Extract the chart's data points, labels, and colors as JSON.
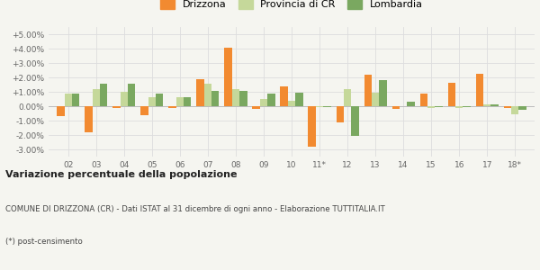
{
  "years": [
    "02",
    "03",
    "04",
    "05",
    "06",
    "07",
    "08",
    "09",
    "10",
    "11*",
    "12",
    "13",
    "14",
    "15",
    "16",
    "17",
    "18*"
  ],
  "drizzona": [
    -0.7,
    -1.8,
    -0.1,
    -0.6,
    -0.1,
    1.9,
    4.05,
    -0.2,
    1.4,
    -2.8,
    -1.15,
    2.2,
    -0.2,
    0.9,
    1.6,
    2.25,
    -0.1
  ],
  "provincia_cr": [
    0.85,
    1.2,
    1.0,
    0.65,
    0.65,
    1.55,
    1.2,
    0.5,
    0.4,
    -0.05,
    1.2,
    0.95,
    0.0,
    -0.1,
    -0.1,
    0.15,
    -0.55
  ],
  "lombardia": [
    0.85,
    1.55,
    1.55,
    0.9,
    0.65,
    1.05,
    1.05,
    0.85,
    0.95,
    -0.05,
    -2.05,
    1.8,
    0.3,
    -0.05,
    -0.05,
    0.15,
    -0.25
  ],
  "color_drizzona": "#f28a30",
  "color_provincia": "#c5d89a",
  "color_lombardia": "#7aa860",
  "bg_color": "#f5f5f0",
  "grid_color": "#dddddd",
  "ylim": [
    -3.5,
    5.5
  ],
  "yticks": [
    -3.0,
    -2.0,
    -1.0,
    0.0,
    1.0,
    2.0,
    3.0,
    4.0,
    5.0
  ],
  "ytick_labels": [
    "-3.00%",
    "-2.00%",
    "-1.00%",
    "0.00%",
    "+1.00%",
    "+2.00%",
    "+3.00%",
    "+4.00%",
    "+5.00%"
  ],
  "title_bold": "Variazione percentuale della popolazione",
  "subtitle": "COMUNE DI DRIZZONA (CR) - Dati ISTAT al 31 dicembre di ogni anno - Elaborazione TUTTITALIA.IT",
  "footnote": "(*) post-censimento",
  "bar_width": 0.27
}
